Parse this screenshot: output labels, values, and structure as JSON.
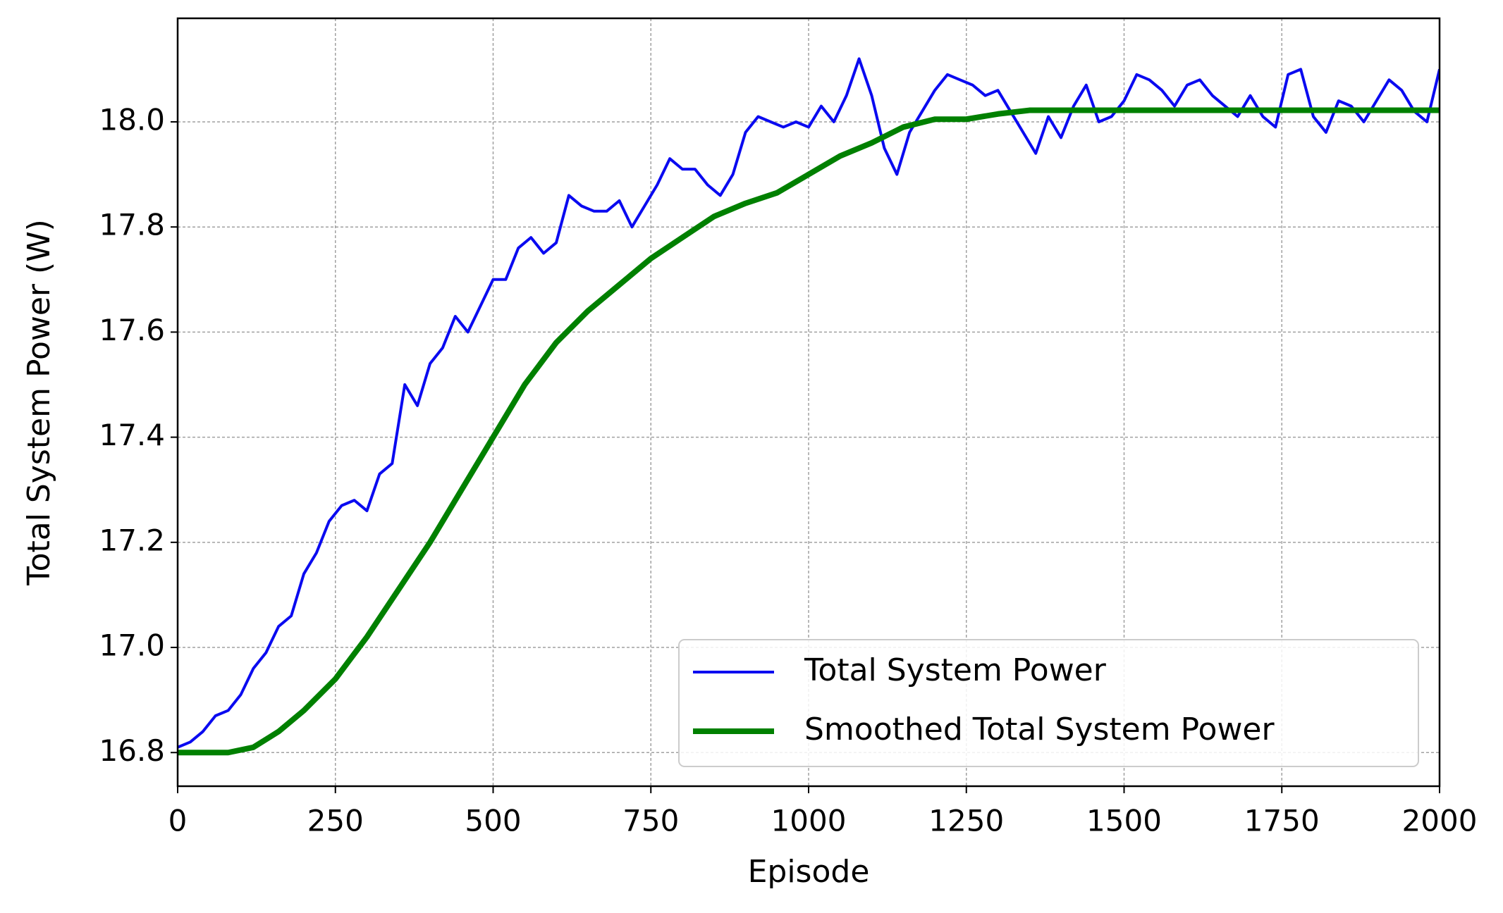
{
  "chart_data": {
    "type": "line",
    "x_label": "Episode",
    "y_label": "Total System Power (W)",
    "xlim": [
      0,
      2000
    ],
    "xticks": [
      0,
      250,
      500,
      750,
      1000,
      1250,
      1500,
      1750,
      2000
    ],
    "ylim": [
      16.736,
      18.197
    ],
    "yticks": [
      16.8,
      {
        "value": 17,
        "label": "17.0"
      },
      17.2,
      17.4,
      17.6,
      17.8,
      {
        "value": 18,
        "label": "18.0"
      }
    ],
    "grid": true,
    "legend": "lower right",
    "series": [
      {
        "name": "Total System Power",
        "color": "#0a0af0",
        "width": 4,
        "x": [
          0,
          20,
          40,
          60,
          80,
          100,
          120,
          140,
          160,
          180,
          200,
          220,
          240,
          260,
          280,
          300,
          320,
          340,
          360,
          380,
          400,
          420,
          440,
          460,
          480,
          500,
          520,
          540,
          560,
          580,
          600,
          620,
          640,
          660,
          680,
          700,
          720,
          740,
          760,
          780,
          800,
          820,
          840,
          860,
          880,
          900,
          920,
          940,
          960,
          980,
          1000,
          1020,
          1040,
          1060,
          1080,
          1100,
          1120,
          1140,
          1160,
          1180,
          1200,
          1220,
          1240,
          1260,
          1280,
          1300,
          1320,
          1340,
          1360,
          1380,
          1400,
          1420,
          1440,
          1460,
          1480,
          1500,
          1520,
          1540,
          1560,
          1580,
          1600,
          1620,
          1640,
          1660,
          1680,
          1700,
          1720,
          1740,
          1760,
          1780,
          1800,
          1820,
          1840,
          1860,
          1880,
          1900,
          1920,
          1940,
          1960,
          1980,
          2000
        ],
        "values": [
          16.81,
          16.82,
          16.84,
          16.87,
          16.88,
          16.91,
          16.96,
          16.99,
          17.04,
          17.06,
          17.14,
          17.18,
          17.24,
          17.27,
          17.28,
          17.26,
          17.33,
          17.35,
          17.5,
          17.46,
          17.54,
          17.57,
          17.63,
          17.6,
          17.65,
          17.7,
          17.7,
          17.76,
          17.78,
          17.75,
          17.77,
          17.86,
          17.84,
          17.83,
          17.83,
          17.85,
          17.8,
          17.84,
          17.88,
          17.93,
          17.91,
          17.91,
          17.88,
          17.86,
          17.9,
          17.98,
          18.01,
          18.0,
          17.99,
          18.0,
          17.99,
          18.03,
          18.0,
          18.05,
          18.12,
          18.05,
          17.95,
          17.9,
          17.98,
          18.02,
          18.06,
          18.09,
          18.08,
          18.07,
          18.05,
          18.06,
          18.02,
          17.98,
          17.94,
          18.01,
          17.97,
          18.03,
          18.07,
          18.0,
          18.01,
          18.04,
          18.09,
          18.08,
          18.06,
          18.03,
          18.07,
          18.08,
          18.05,
          18.03,
          18.01,
          18.05,
          18.01,
          17.99,
          18.09,
          18.1,
          18.01,
          17.98,
          18.04,
          18.03,
          18.0,
          18.04,
          18.08,
          18.06,
          18.02,
          18.0,
          18.1
        ]
      },
      {
        "name": "Smoothed Total System Power",
        "color": "#008000",
        "width": 8,
        "x": [
          0,
          80,
          120,
          160,
          200,
          250,
          300,
          350,
          400,
          450,
          500,
          550,
          600,
          650,
          700,
          750,
          800,
          850,
          900,
          950,
          1000,
          1050,
          1100,
          1150,
          1200,
          1250,
          1300,
          1350,
          2000
        ],
        "values": [
          16.8,
          16.8,
          16.81,
          16.84,
          16.88,
          16.94,
          17.02,
          17.11,
          17.2,
          17.3,
          17.4,
          17.5,
          17.58,
          17.64,
          17.69,
          17.74,
          17.78,
          17.82,
          17.845,
          17.865,
          17.9,
          17.935,
          17.96,
          17.99,
          18.005,
          18.005,
          18.015,
          18.022,
          18.022
        ]
      }
    ]
  }
}
